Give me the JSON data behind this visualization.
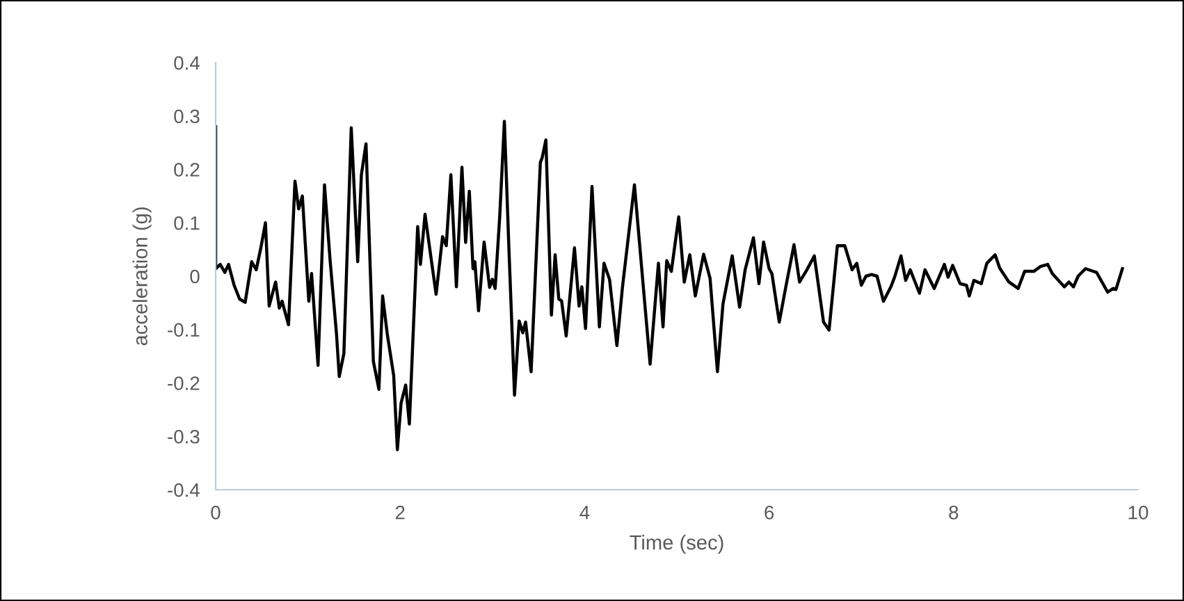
{
  "chart_data": {
    "type": "line",
    "xlabel": "Time (sec)",
    "ylabel": "acceleration (g)",
    "xlim": [
      0,
      10
    ],
    "ylim": [
      -0.4,
      0.4
    ],
    "xticks": [
      0,
      2,
      4,
      6,
      8,
      10
    ],
    "yticks": [
      -0.4,
      -0.3,
      -0.2,
      -0.1,
      0,
      0.1,
      0.2,
      0.3,
      0.4
    ],
    "grid": false,
    "marker": "none",
    "line_style": "solid",
    "series": [
      {
        "color": "#000000",
        "x": [
          0,
          0.0,
          0.05,
          0.1,
          0.14,
          0.2,
          0.26,
          0.32,
          0.39,
          0.44,
          0.49,
          0.54,
          0.58,
          0.65,
          0.69,
          0.72,
          0.79,
          0.86,
          0.9,
          0.94,
          1.01,
          1.04,
          1.11,
          1.18,
          1.24,
          1.31,
          1.34,
          1.39,
          1.47,
          1.54,
          1.58,
          1.63,
          1.71,
          1.77,
          1.81,
          1.86,
          1.93,
          1.97,
          2.01,
          2.06,
          2.1,
          2.19,
          2.22,
          2.27,
          2.33,
          2.39,
          2.46,
          2.5,
          2.55,
          2.61,
          2.67,
          2.71,
          2.75,
          2.79,
          2.81,
          2.85,
          2.91,
          2.97,
          3.0,
          3.03,
          3.08,
          3.13,
          3.18,
          3.24,
          3.29,
          3.33,
          3.36,
          3.42,
          3.52,
          3.54,
          3.58,
          3.64,
          3.68,
          3.72,
          3.75,
          3.8,
          3.89,
          3.94,
          3.97,
          4.01,
          4.08,
          4.16,
          4.21,
          4.27,
          4.35,
          4.41,
          4.54,
          4.65,
          4.71,
          4.8,
          4.85,
          4.89,
          4.94,
          5.02,
          5.08,
          5.14,
          5.2,
          5.29,
          5.36,
          5.44,
          5.5,
          5.6,
          5.68,
          5.74,
          5.83,
          5.89,
          5.94,
          6.0,
          6.03,
          6.11,
          6.18,
          6.27,
          6.33,
          6.41,
          6.49,
          6.59,
          6.65,
          6.74,
          6.82,
          6.9,
          6.95,
          7.0,
          7.05,
          7.11,
          7.17,
          7.24,
          7.32,
          7.36,
          7.43,
          7.48,
          7.53,
          7.63,
          7.69,
          7.79,
          7.9,
          7.94,
          7.99,
          8.07,
          8.14,
          8.17,
          8.22,
          8.3,
          8.36,
          8.45,
          8.5,
          8.6,
          8.7,
          8.77,
          8.87,
          8.94,
          9.02,
          9.07,
          9.2,
          9.25,
          9.3,
          9.35,
          9.43,
          9.55,
          9.67,
          9.73,
          9.76,
          9.83
        ],
        "values": [
          0.28,
          0.014,
          0.022,
          0.007,
          0.022,
          -0.017,
          -0.043,
          -0.049,
          0.027,
          0.012,
          0.053,
          0.1,
          -0.056,
          -0.011,
          -0.06,
          -0.047,
          -0.091,
          0.178,
          0.126,
          0.15,
          -0.047,
          0.005,
          -0.167,
          0.171,
          0.031,
          -0.108,
          -0.188,
          -0.145,
          0.278,
          0.027,
          0.19,
          0.248,
          -0.16,
          -0.212,
          -0.037,
          -0.108,
          -0.186,
          -0.325,
          -0.238,
          -0.204,
          -0.277,
          0.093,
          0.022,
          0.116,
          0.04,
          -0.034,
          0.074,
          0.057,
          0.19,
          -0.02,
          0.204,
          0.063,
          0.159,
          0.014,
          0.027,
          -0.065,
          0.064,
          -0.021,
          -0.006,
          -0.023,
          0.113,
          0.29,
          0.048,
          -0.223,
          -0.084,
          -0.106,
          -0.086,
          -0.179,
          0.213,
          0.222,
          0.255,
          -0.073,
          0.04,
          -0.043,
          -0.046,
          -0.112,
          0.053,
          -0.056,
          -0.02,
          -0.098,
          0.168,
          -0.095,
          0.024,
          -0.006,
          -0.13,
          -0.021,
          0.171,
          -0.047,
          -0.165,
          0.024,
          -0.095,
          0.029,
          0.009,
          0.111,
          -0.011,
          0.04,
          -0.037,
          0.041,
          -0.004,
          -0.179,
          -0.052,
          0.038,
          -0.058,
          0.012,
          0.072,
          -0.014,
          0.064,
          0.014,
          0.005,
          -0.086,
          -0.021,
          0.059,
          -0.011,
          0.012,
          0.038,
          -0.086,
          -0.101,
          0.057,
          0.057,
          0.012,
          0.024,
          -0.017,
          0,
          0.003,
          0,
          -0.047,
          -0.02,
          -0.002,
          0.038,
          -0.008,
          0.012,
          -0.032,
          0.012,
          -0.023,
          0.022,
          -0.002,
          0.02,
          -0.014,
          -0.017,
          -0.037,
          -0.008,
          -0.014,
          0.024,
          0.04,
          0.015,
          -0.011,
          -0.023,
          0.009,
          0.009,
          0.018,
          0.022,
          0.005,
          -0.02,
          -0.011,
          -0.02,
          0,
          0.014,
          0.007,
          -0.03,
          -0.023,
          -0.025,
          0.014
        ]
      }
    ]
  }
}
